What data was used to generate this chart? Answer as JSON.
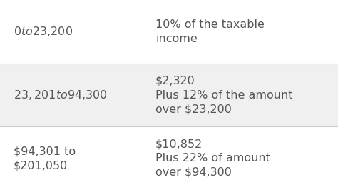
{
  "rows": [
    {
      "bracket": "$0 to $23,200",
      "tax": "10% of the taxable\nincome",
      "bg": "#ffffff"
    },
    {
      "bracket": "$23,201 to $94,300",
      "tax": "$2,320\nPlus 12% of the amount\nover $23,200",
      "bg": "#f0f0f0"
    },
    {
      "bracket": "$94,301 to\n$201,050",
      "tax": "$10,852\nPlus 22% of amount\nover $94,300",
      "bg": "#ffffff"
    }
  ],
  "col_split": 0.42,
  "text_color": "#555555",
  "font_size": 11.5,
  "line_color": "#cccccc",
  "bg_white": "#ffffff",
  "bg_gray": "#f0f0f0"
}
